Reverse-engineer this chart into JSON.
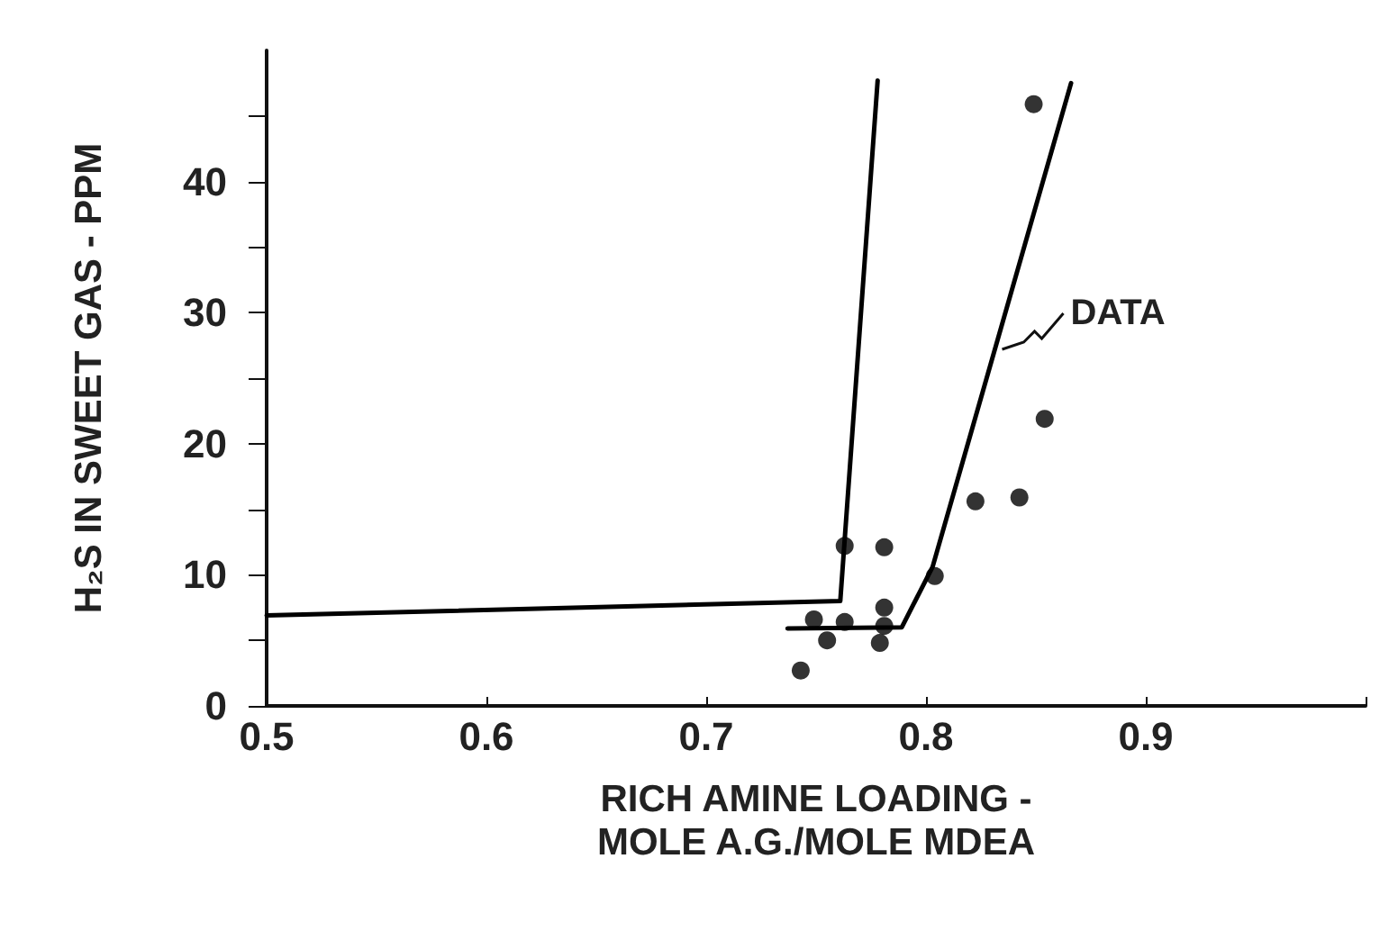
{
  "chart_data": {
    "type": "scatter",
    "xlabel": "RICH AMINE LOADING -\nMOLE A.G./MOLE MDEA",
    "ylabel": "H₂S IN SWEET GAS - PPM",
    "xlim": [
      0.5,
      1.0
    ],
    "xticks": [
      0.5,
      0.6,
      0.7,
      0.8,
      0.9,
      {
        "value": 1.0,
        "label": null
      }
    ],
    "ylim": [
      0,
      50
    ],
    "yticks": [
      0,
      {
        "value": 5,
        "label": null
      },
      10,
      {
        "value": 15,
        "label": null
      },
      20,
      {
        "value": 25,
        "label": null
      },
      30,
      {
        "value": 35,
        "label": null
      },
      40,
      {
        "value": 45,
        "label": null
      }
    ],
    "grid": false,
    "series": [
      {
        "color": "#000000",
        "marker": "circle",
        "x": [
          0.849,
          0.854,
          0.8225,
          0.8425,
          0.763,
          0.781,
          0.804,
          0.781,
          0.749,
          0.763,
          0.781,
          0.755,
          0.779,
          0.743
        ],
        "values": [
          45.9,
          21.9,
          15.6,
          15.9,
          12.2,
          12.1,
          9.9,
          7.5,
          6.6,
          6.4,
          6.1,
          5.0,
          4.8,
          2.7
        ]
      },
      {
        "type": "line",
        "color": "#000000",
        "marker": "none",
        "line_style": "solid",
        "x": [
          0.5,
          0.761,
          0.778
        ],
        "values": [
          6.9,
          8.0,
          47.7
        ]
      },
      {
        "type": "line",
        "color": "#000000",
        "marker": "none",
        "line_style": "solid",
        "x": [
          0.737,
          0.789,
          0.803,
          0.866
        ],
        "values": [
          5.9,
          6.0,
          10.6,
          47.5
        ]
      }
    ],
    "annotations": [
      {
        "text": "DATA",
        "x": 0.833,
        "y": 27.2
      }
    ]
  }
}
